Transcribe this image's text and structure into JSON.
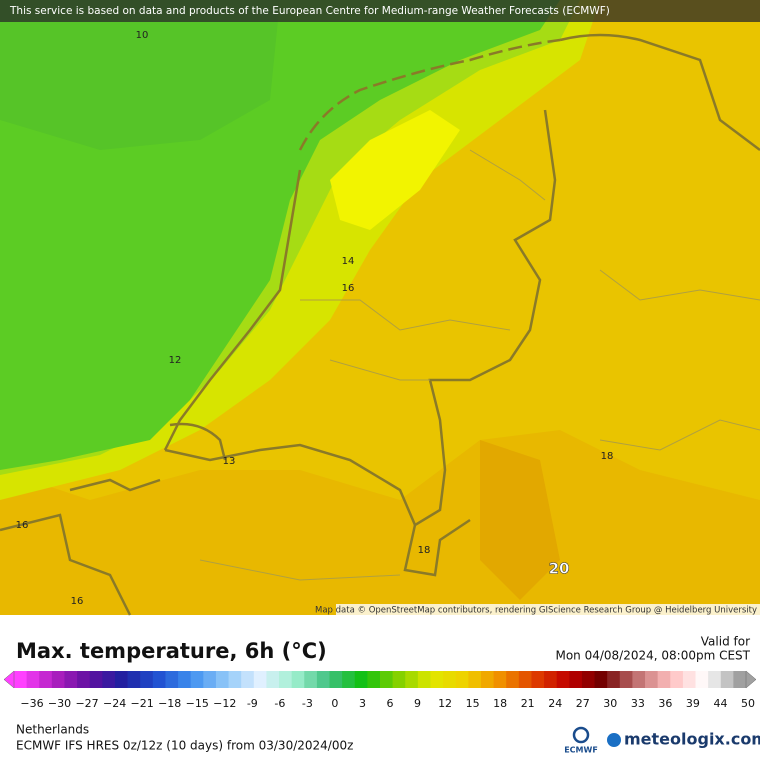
{
  "header": {
    "attribution": "This service is based on data and products of the European Centre for Medium-range Weather Forecasts (ECMWF)"
  },
  "map": {
    "contour_labels": [
      "10",
      "14",
      "16",
      "12",
      "13",
      "16",
      "16",
      "18",
      "18",
      "20"
    ],
    "credit": "Map data © OpenStreetMap contributors, rendering GIScience Research Group @ Heidelberg University"
  },
  "legend": {
    "title": "Max. temperature, 6h (°C)",
    "valid_label": "Valid for",
    "valid_time": "Mon 04/08/2024, 08:00pm CEST",
    "scale_labels": [
      "−36",
      "−30",
      "−27",
      "−24",
      "−21",
      "−18",
      "−15",
      "−12",
      "-9",
      "-6",
      "-3",
      "0",
      "3",
      "6",
      "9",
      "12",
      "15",
      "18",
      "21",
      "24",
      "27",
      "30",
      "33",
      "36",
      "39",
      "44",
      "50"
    ]
  },
  "footer": {
    "region": "Netherlands",
    "model": "ECMWF IFS HRES 0z/12z (10 days) from  03/30/2024/00z",
    "ecmwf_logo": "ECMWF",
    "brand": "meteologix.com"
  }
}
